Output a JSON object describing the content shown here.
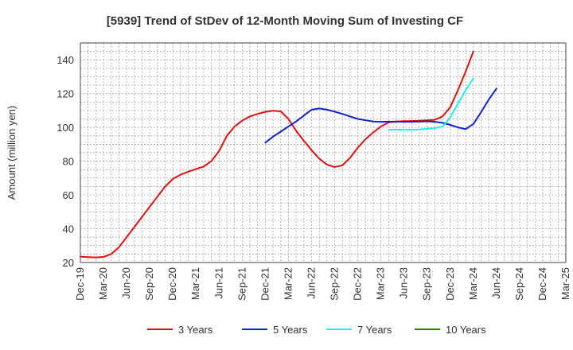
{
  "chart_data": {
    "type": "line",
    "title": "[5939]  Trend of StDev of 12-Month Moving Sum of Investing CF",
    "ylabel": "Amount (million yen)",
    "xlabel": "",
    "ylim": [
      20,
      150
    ],
    "yticks": [
      20,
      40,
      60,
      80,
      100,
      120,
      140
    ],
    "x_ticks": [
      "Dec-19",
      "Mar-20",
      "Jun-20",
      "Sep-20",
      "Dec-20",
      "Mar-21",
      "Jun-21",
      "Sep-21",
      "Dec-21",
      "Mar-22",
      "Jun-22",
      "Sep-22",
      "Dec-22",
      "Mar-23",
      "Jun-23",
      "Sep-23",
      "Dec-23",
      "Mar-24",
      "Jun-24",
      "Sep-24",
      "Dec-24",
      "Mar-25"
    ],
    "grid": true,
    "legend_position": "bottom",
    "series": [
      {
        "name": "3 Years",
        "color": "#dd1111",
        "start_index": 0,
        "values": [
          23.5,
          23.2,
          23.0,
          23.3,
          25.0,
          29.0,
          35.0,
          41.0,
          47.0,
          53.0,
          59.0,
          65.0,
          69.5,
          72.0,
          73.8,
          75.3,
          76.8,
          80.0,
          86.0,
          95.0,
          100.5,
          104.0,
          106.5,
          108.0,
          109.2,
          109.8,
          109.5,
          105.0,
          98.0,
          92.0,
          86.5,
          81.5,
          78.0,
          76.5,
          77.5,
          82.0,
          88.0,
          93.0,
          97.0,
          100.5,
          103.0,
          103.5,
          103.7,
          103.8,
          104.0,
          104.2,
          104.5,
          106.5,
          112.0,
          122.0,
          133.0,
          145.0
        ]
      },
      {
        "name": "5 Years",
        "color": "#1122cc",
        "start_index": 24,
        "values": [
          91.0,
          94.5,
          97.5,
          100.5,
          103.5,
          107.0,
          110.5,
          111.2,
          110.5,
          109.3,
          108.0,
          106.5,
          105.0,
          104.2,
          103.5,
          103.3,
          103.4,
          103.4,
          103.3,
          103.3,
          103.4,
          103.6,
          103.3,
          102.7,
          101.5,
          100.0,
          99.0,
          102.0,
          109.0,
          116.5,
          123.0
        ]
      },
      {
        "name": "7 Years",
        "color": "#22eeee",
        "start_index": 40,
        "values": [
          98.5,
          98.7,
          98.5,
          98.6,
          98.8,
          99.2,
          99.5,
          100.5,
          106.0,
          114.0,
          122.0,
          129.0
        ]
      },
      {
        "name": "10 Years",
        "color": "#118811",
        "start_index": 0,
        "values": []
      }
    ]
  }
}
